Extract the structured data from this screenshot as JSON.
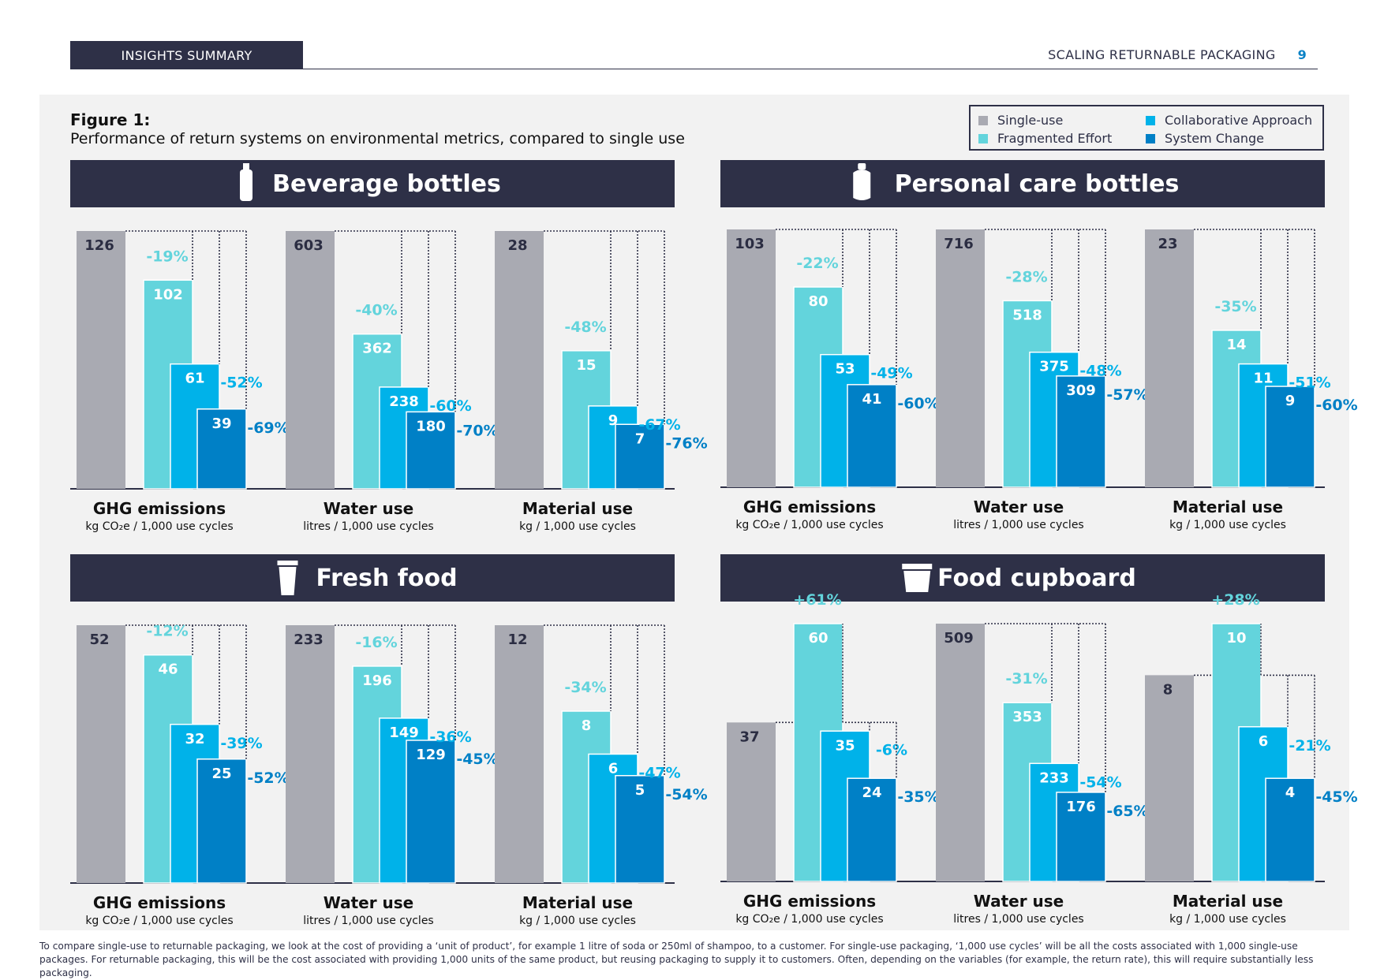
{
  "header": {
    "tab_label": "INSIGHTS SUMMARY",
    "doc_title": "SCALING RETURNABLE PACKAGING",
    "page_number": "9"
  },
  "figure": {
    "title": "Figure 1:",
    "subtitle": "Performance of return systems on environmental metrics, compared to single use"
  },
  "legend": [
    {
      "label": "Single-use",
      "color": "#a9aab2"
    },
    {
      "label": "Fragmented Effort",
      "color": "#63d4dc"
    },
    {
      "label": "Collaborative Approach",
      "color": "#00b2e9"
    },
    {
      "label": "System Change",
      "color": "#0080c6"
    }
  ],
  "metrics": [
    {
      "name": "GHG emissions",
      "unit": "kg CO₂e / 1,000 use cycles"
    },
    {
      "name": "Water use",
      "unit": "litres / 1,000 use cycles"
    },
    {
      "name": "Material use",
      "unit": "kg / 1,000 use cycles"
    }
  ],
  "chart_data": [
    {
      "type": "bar",
      "title": "Beverage bottles",
      "icon": "bottle-icon",
      "groups": [
        {
          "metric": "GHG emissions",
          "values": [
            126,
            102,
            61,
            39
          ],
          "labels": [
            "126",
            "102",
            "61",
            "39"
          ],
          "changes": [
            "-19%",
            "-52%",
            "-69%"
          ]
        },
        {
          "metric": "Water use",
          "values": [
            603,
            362,
            238,
            180
          ],
          "labels": [
            "603",
            "362",
            "238",
            "180"
          ],
          "changes": [
            "-40%",
            "-60%",
            "-70%"
          ]
        },
        {
          "metric": "Material use",
          "values": [
            28,
            15,
            9,
            7
          ],
          "labels": [
            "28",
            "15",
            "9",
            "7"
          ],
          "changes": [
            "-48%",
            "-67%",
            "-76%"
          ]
        }
      ]
    },
    {
      "type": "bar",
      "title": "Personal care bottles",
      "icon": "pump-bottle-icon",
      "groups": [
        {
          "metric": "GHG emissions",
          "values": [
            103,
            80,
            53,
            41
          ],
          "labels": [
            "103",
            "80",
            "53",
            "41"
          ],
          "changes": [
            "-22%",
            "-49%",
            "-60%"
          ]
        },
        {
          "metric": "Water use",
          "values": [
            716,
            518,
            375,
            309
          ],
          "labels": [
            "716",
            "518",
            "375",
            "309"
          ],
          "changes": [
            "-28%",
            "-48%",
            "-57%"
          ]
        },
        {
          "metric": "Material use",
          "values": [
            23,
            14,
            11,
            9
          ],
          "labels": [
            "23",
            "14",
            "11",
            "9"
          ],
          "changes": [
            "-35%",
            "-51%",
            "-60%"
          ]
        }
      ]
    },
    {
      "type": "bar",
      "title": "Fresh food",
      "icon": "cup-icon",
      "groups": [
        {
          "metric": "GHG emissions",
          "values": [
            52,
            46,
            32,
            25
          ],
          "labels": [
            "52",
            "46",
            "32",
            "25"
          ],
          "changes": [
            "-12%",
            "-39%",
            "-52%"
          ]
        },
        {
          "metric": "Water use",
          "values": [
            233,
            196,
            149,
            129
          ],
          "labels": [
            "233",
            "196",
            "149",
            "129"
          ],
          "changes": [
            "-16%",
            "-36%",
            "-45%"
          ]
        },
        {
          "metric": "Material use",
          "values": [
            12,
            8,
            6,
            5
          ],
          "labels": [
            "12",
            "8",
            "6",
            "5"
          ],
          "changes": [
            "-34%",
            "-47%",
            "-54%"
          ]
        }
      ]
    },
    {
      "type": "bar",
      "title": "Food cupboard",
      "icon": "tub-icon",
      "groups": [
        {
          "metric": "GHG emissions",
          "values": [
            37,
            60,
            35,
            24
          ],
          "labels": [
            "37",
            "60",
            "35",
            "24"
          ],
          "changes": [
            "+61%",
            "-6%",
            "-35%"
          ]
        },
        {
          "metric": "Water use",
          "values": [
            509,
            353,
            233,
            176
          ],
          "labels": [
            "509",
            "353",
            "233",
            "176"
          ],
          "changes": [
            "-31%",
            "-54%",
            "-65%"
          ]
        },
        {
          "metric": "Material use",
          "values": [
            8,
            10,
            6,
            4
          ],
          "labels": [
            "8",
            "10",
            "6",
            "4"
          ],
          "changes": [
            "+28%",
            "-21%",
            "-45%"
          ]
        }
      ]
    }
  ],
  "footnote": "To compare single-use to returnable packaging, we look at the cost of providing a ‘unit of product’, for example 1 litre of soda or 250ml of shampoo, to a customer. For single-use packaging, ‘1,000 use cycles’ will be all the costs associated with 1,000 single-use packages. For returnable packaging, this will be the cost associated with providing 1,000 units of the same product, but reusing packaging to supply it to customers. Often, depending on the variables (for example, the return rate), this will require substantially less packaging."
}
